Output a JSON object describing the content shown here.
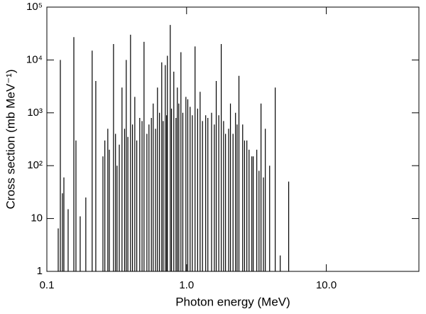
{
  "chart_data": {
    "type": "spike",
    "x_label": "Photon energy (MeV)",
    "y_label": "Cross section (mb MeV⁻¹)",
    "x_log": true,
    "y_log": true,
    "color": "#000000",
    "xlim": [
      0.1,
      46
    ],
    "ylim": [
      1,
      100000
    ],
    "xticks": [
      0.1,
      {
        "value": 1,
        "label": "1.0"
      },
      {
        "value": 10,
        "label": "10.0"
      }
    ],
    "yticks": [
      1,
      10,
      {
        "value": 100,
        "label": "10²"
      },
      {
        "value": 1000,
        "label": "10³"
      },
      {
        "value": 10000,
        "label": "10⁴"
      },
      {
        "value": 100000,
        "label": "10⁵"
      }
    ],
    "x": [
      0.1206,
      0.1249,
      0.1293,
      0.1324,
      0.142,
      0.156,
      0.1615,
      0.1732,
      0.19,
      0.211,
      0.224,
      0.252,
      0.273,
      0.3,
      0.318,
      0.345,
      0.37,
      0.397,
      0.426,
      0.462,
      0.496,
      0.538,
      0.577,
      0.619,
      0.664,
      0.704,
      0.729,
      0.764,
      0.81,
      0.859,
      0.911,
      0.989,
      1.06,
      1.15,
      1.25,
      1.37,
      1.51,
      1.63,
      1.77,
      1.9,
      2.06,
      2.24,
      2.37,
      2.52,
      2.7,
      2.93,
      3.18,
      3.41,
      3.66,
      3.93,
      4.31,
      4.68,
      5.38,
      0.26,
      0.28,
      0.31,
      0.33,
      0.36,
      0.38,
      0.41,
      0.44,
      0.48,
      0.52,
      0.56,
      0.6,
      0.64,
      0.68,
      0.72,
      0.78,
      0.84,
      0.88,
      0.94,
      1.02,
      1.1,
      1.2,
      1.3,
      1.42,
      1.58,
      1.7,
      1.84,
      2.0,
      2.15,
      2.3,
      2.6,
      2.8,
      3.0,
      3.3,
      3.55
    ],
    "values": [
      6.5,
      10000,
      30,
      60,
      15,
      27000,
      300,
      11,
      25,
      15000,
      4000,
      150,
      500,
      20000,
      100,
      3000,
      10000,
      30000,
      2000,
      800,
      22000,
      600,
      1500,
      3000,
      9000,
      8000,
      12000,
      46000,
      6000,
      3000,
      14000,
      2000,
      1300,
      18000,
      2500,
      900,
      1000,
      4000,
      20000,
      400,
      1500,
      1000,
      5000,
      600,
      300,
      150,
      200,
      1500,
      500,
      100,
      3000,
      2,
      50,
      300,
      200,
      400,
      250,
      500,
      350,
      600,
      300,
      700,
      400,
      800,
      500,
      1000,
      700,
      900,
      1200,
      800,
      1500,
      1000,
      1800,
      900,
      1200,
      700,
      800,
      600,
      900,
      700,
      500,
      400,
      600,
      300,
      200,
      150,
      80,
      60
    ]
  }
}
